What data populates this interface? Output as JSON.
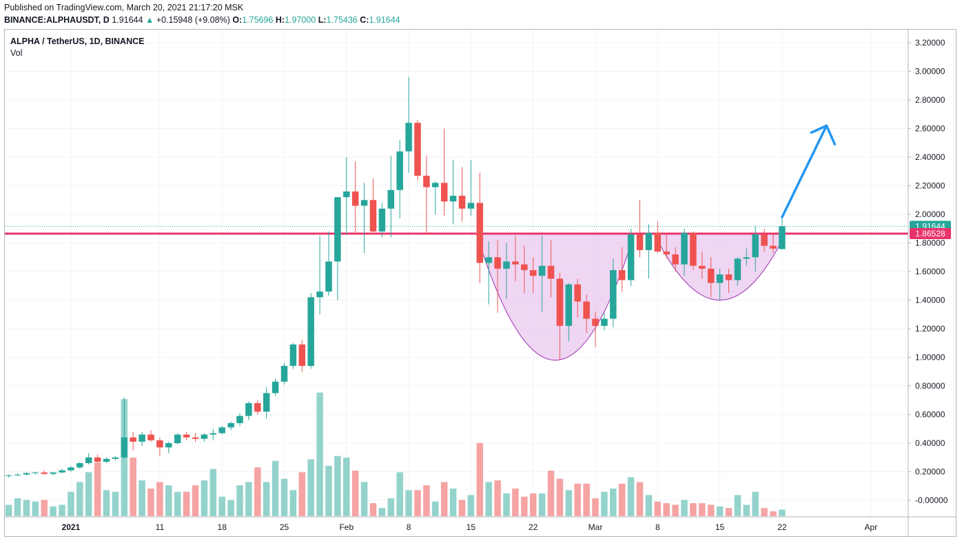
{
  "header": {
    "published": "Published on TradingView.com, March 20, 2021 21:17:20 MSK",
    "symbol": "BINANCE:ALPHAUSDT, D",
    "last": "1.91644",
    "change": "+0.15948 (+9.08%)",
    "o_label": "O:",
    "o_value": "1.75696",
    "h_label": "H:",
    "h_value": "1.97000",
    "l_label": "L:",
    "l_value": "1.75436",
    "c_label": "C:",
    "c_value": "1.91644",
    "up_arrow": "▲"
  },
  "legend": {
    "title": "ALPHA / TetherUS, 1D, BINANCE",
    "volume": "Vol"
  },
  "colors": {
    "up": "#26a69a",
    "down": "#ef5350",
    "volume_up": "#93d3cc",
    "volume_down": "#f5a3a3",
    "resistance": "#e8336a",
    "cup_fill": "#e9c8ef",
    "cup_stroke": "#9c27b0",
    "projection": "#2196f3"
  },
  "chart_data": {
    "type": "candlestick",
    "ylim": [
      -0.05,
      3.27
    ],
    "y_ticks": [
      "3.20000",
      "3.00000",
      "2.80000",
      "2.60000",
      "2.40000",
      "2.20000",
      "2.00000",
      "1.80000",
      "1.60000",
      "1.40000",
      "1.20000",
      "1.00000",
      "0.80000",
      "0.60000",
      "0.40000",
      "0.20000",
      "-0.00000"
    ],
    "y_tick_values": [
      3.2,
      3.0,
      2.8,
      2.6,
      2.4,
      2.2,
      2.0,
      1.8,
      1.6,
      1.4,
      1.2,
      1.0,
      0.8,
      0.6,
      0.4,
      0.2,
      0.0
    ],
    "x_ticks": [
      {
        "label": "2021",
        "date": "2021-01-01"
      },
      {
        "label": "11",
        "date": "2021-01-11"
      },
      {
        "label": "18",
        "date": "2021-01-18"
      },
      {
        "label": "25",
        "date": "2021-01-25"
      },
      {
        "label": "Feb",
        "date": "2021-02-01"
      },
      {
        "label": "8",
        "date": "2021-02-08"
      },
      {
        "label": "15",
        "date": "2021-02-15"
      },
      {
        "label": "22",
        "date": "2021-02-22"
      },
      {
        "label": "Mar",
        "date": "2021-03-01"
      },
      {
        "label": "8",
        "date": "2021-03-08"
      },
      {
        "label": "15",
        "date": "2021-03-15"
      },
      {
        "label": "22",
        "date": "2021-03-22"
      },
      {
        "label": "Apr",
        "date": "2021-04-01"
      }
    ],
    "candles": [
      {
        "date": "2020-12-25",
        "o": 0.17,
        "h": 0.18,
        "l": 0.16,
        "c": 0.175,
        "v": 0.07
      },
      {
        "date": "2020-12-26",
        "o": 0.175,
        "h": 0.19,
        "l": 0.17,
        "c": 0.18,
        "v": 0.11
      },
      {
        "date": "2020-12-27",
        "o": 0.18,
        "h": 0.2,
        "l": 0.175,
        "c": 0.19,
        "v": 0.1
      },
      {
        "date": "2020-12-28",
        "o": 0.19,
        "h": 0.2,
        "l": 0.18,
        "c": 0.195,
        "v": 0.09
      },
      {
        "date": "2020-12-29",
        "o": 0.195,
        "h": 0.21,
        "l": 0.18,
        "c": 0.185,
        "v": 0.1
      },
      {
        "date": "2020-12-30",
        "o": 0.185,
        "h": 0.2,
        "l": 0.175,
        "c": 0.195,
        "v": 0.06
      },
      {
        "date": "2020-12-31",
        "o": 0.195,
        "h": 0.22,
        "l": 0.19,
        "c": 0.21,
        "v": 0.07
      },
      {
        "date": "2021-01-01",
        "o": 0.21,
        "h": 0.24,
        "l": 0.2,
        "c": 0.23,
        "v": 0.15
      },
      {
        "date": "2021-01-02",
        "o": 0.23,
        "h": 0.27,
        "l": 0.22,
        "c": 0.26,
        "v": 0.21
      },
      {
        "date": "2021-01-03",
        "o": 0.26,
        "h": 0.33,
        "l": 0.25,
        "c": 0.3,
        "v": 0.27
      },
      {
        "date": "2021-01-04",
        "o": 0.3,
        "h": 0.32,
        "l": 0.26,
        "c": 0.27,
        "v": 0.33
      },
      {
        "date": "2021-01-05",
        "o": 0.27,
        "h": 0.3,
        "l": 0.26,
        "c": 0.29,
        "v": 0.16
      },
      {
        "date": "2021-01-06",
        "o": 0.29,
        "h": 0.31,
        "l": 0.28,
        "c": 0.3,
        "v": 0.15
      },
      {
        "date": "2021-01-07",
        "o": 0.3,
        "h": 0.72,
        "l": 0.29,
        "c": 0.44,
        "v": 0.72
      },
      {
        "date": "2021-01-08",
        "o": 0.44,
        "h": 0.48,
        "l": 0.35,
        "c": 0.41,
        "v": 0.36
      },
      {
        "date": "2021-01-09",
        "o": 0.41,
        "h": 0.48,
        "l": 0.38,
        "c": 0.46,
        "v": 0.22
      },
      {
        "date": "2021-01-10",
        "o": 0.46,
        "h": 0.49,
        "l": 0.41,
        "c": 0.42,
        "v": 0.17
      },
      {
        "date": "2021-01-11",
        "o": 0.42,
        "h": 0.44,
        "l": 0.31,
        "c": 0.37,
        "v": 0.21
      },
      {
        "date": "2021-01-12",
        "o": 0.37,
        "h": 0.41,
        "l": 0.33,
        "c": 0.4,
        "v": 0.19
      },
      {
        "date": "2021-01-13",
        "o": 0.4,
        "h": 0.47,
        "l": 0.39,
        "c": 0.46,
        "v": 0.15
      },
      {
        "date": "2021-01-14",
        "o": 0.46,
        "h": 0.48,
        "l": 0.42,
        "c": 0.44,
        "v": 0.15
      },
      {
        "date": "2021-01-15",
        "o": 0.44,
        "h": 0.47,
        "l": 0.41,
        "c": 0.43,
        "v": 0.19
      },
      {
        "date": "2021-01-16",
        "o": 0.43,
        "h": 0.47,
        "l": 0.41,
        "c": 0.46,
        "v": 0.22
      },
      {
        "date": "2021-01-17",
        "o": 0.46,
        "h": 0.5,
        "l": 0.42,
        "c": 0.47,
        "v": 0.29
      },
      {
        "date": "2021-01-18",
        "o": 0.47,
        "h": 0.52,
        "l": 0.46,
        "c": 0.51,
        "v": 0.12
      },
      {
        "date": "2021-01-19",
        "o": 0.51,
        "h": 0.55,
        "l": 0.49,
        "c": 0.54,
        "v": 0.1
      },
      {
        "date": "2021-01-20",
        "o": 0.54,
        "h": 0.61,
        "l": 0.52,
        "c": 0.59,
        "v": 0.19
      },
      {
        "date": "2021-01-21",
        "o": 0.59,
        "h": 0.69,
        "l": 0.56,
        "c": 0.68,
        "v": 0.21
      },
      {
        "date": "2021-01-22",
        "o": 0.68,
        "h": 0.7,
        "l": 0.6,
        "c": 0.62,
        "v": 0.3
      },
      {
        "date": "2021-01-23",
        "o": 0.62,
        "h": 0.79,
        "l": 0.57,
        "c": 0.75,
        "v": 0.21
      },
      {
        "date": "2021-01-24",
        "o": 0.75,
        "h": 0.85,
        "l": 0.73,
        "c": 0.83,
        "v": 0.34
      },
      {
        "date": "2021-01-25",
        "o": 0.83,
        "h": 0.96,
        "l": 0.81,
        "c": 0.94,
        "v": 0.23
      },
      {
        "date": "2021-01-26",
        "o": 0.94,
        "h": 1.1,
        "l": 0.92,
        "c": 1.09,
        "v": 0.16
      },
      {
        "date": "2021-01-27",
        "o": 1.09,
        "h": 1.12,
        "l": 0.9,
        "c": 0.94,
        "v": 0.27
      },
      {
        "date": "2021-01-28",
        "o": 0.94,
        "h": 1.45,
        "l": 0.92,
        "c": 1.42,
        "v": 0.35
      },
      {
        "date": "2021-01-29",
        "o": 1.42,
        "h": 1.85,
        "l": 1.3,
        "c": 1.46,
        "v": 0.76
      },
      {
        "date": "2021-01-30",
        "o": 1.46,
        "h": 1.88,
        "l": 1.43,
        "c": 1.67,
        "v": 0.31
      },
      {
        "date": "2021-01-31",
        "o": 1.67,
        "h": 2.12,
        "l": 1.4,
        "c": 2.12,
        "v": 0.37
      },
      {
        "date": "2021-02-01",
        "o": 2.12,
        "h": 2.4,
        "l": 1.86,
        "c": 2.16,
        "v": 0.36
      },
      {
        "date": "2021-02-02",
        "o": 2.16,
        "h": 2.37,
        "l": 1.86,
        "c": 2.06,
        "v": 0.28
      },
      {
        "date": "2021-02-03",
        "o": 2.06,
        "h": 2.22,
        "l": 1.73,
        "c": 2.1,
        "v": 0.21
      },
      {
        "date": "2021-02-04",
        "o": 2.1,
        "h": 2.25,
        "l": 1.86,
        "c": 1.88,
        "v": 0.08
      },
      {
        "date": "2021-02-05",
        "o": 1.88,
        "h": 2.08,
        "l": 1.84,
        "c": 2.04,
        "v": 0.05
      },
      {
        "date": "2021-02-06",
        "o": 2.04,
        "h": 2.41,
        "l": 1.84,
        "c": 2.17,
        "v": 0.11
      },
      {
        "date": "2021-02-07",
        "o": 2.17,
        "h": 2.52,
        "l": 1.97,
        "c": 2.44,
        "v": 0.27
      },
      {
        "date": "2021-02-08",
        "o": 2.44,
        "h": 2.96,
        "l": 2.29,
        "c": 2.64,
        "v": 0.16
      },
      {
        "date": "2021-02-09",
        "o": 2.64,
        "h": 2.66,
        "l": 2.24,
        "c": 2.27,
        "v": 0.16
      },
      {
        "date": "2021-02-10",
        "o": 2.27,
        "h": 2.41,
        "l": 1.86,
        "c": 2.19,
        "v": 0.19
      },
      {
        "date": "2021-02-11",
        "o": 2.19,
        "h": 2.23,
        "l": 2.0,
        "c": 2.22,
        "v": 0.09
      },
      {
        "date": "2021-02-12",
        "o": 2.22,
        "h": 2.6,
        "l": 1.99,
        "c": 2.09,
        "v": 0.21
      },
      {
        "date": "2021-02-13",
        "o": 2.09,
        "h": 2.38,
        "l": 1.93,
        "c": 2.13,
        "v": 0.17
      },
      {
        "date": "2021-02-14",
        "o": 2.13,
        "h": 2.33,
        "l": 1.95,
        "c": 2.04,
        "v": 0.1
      },
      {
        "date": "2021-02-15",
        "o": 2.04,
        "h": 2.38,
        "l": 1.99,
        "c": 2.08,
        "v": 0.13
      },
      {
        "date": "2021-02-16",
        "o": 2.08,
        "h": 2.29,
        "l": 1.52,
        "c": 1.66,
        "v": 0.45
      },
      {
        "date": "2021-02-17",
        "o": 1.66,
        "h": 1.81,
        "l": 1.37,
        "c": 1.7,
        "v": 0.21
      },
      {
        "date": "2021-02-18",
        "o": 1.7,
        "h": 1.82,
        "l": 1.31,
        "c": 1.62,
        "v": 0.22
      },
      {
        "date": "2021-02-19",
        "o": 1.62,
        "h": 1.8,
        "l": 1.41,
        "c": 1.67,
        "v": 0.14
      },
      {
        "date": "2021-02-20",
        "o": 1.67,
        "h": 1.85,
        "l": 1.53,
        "c": 1.65,
        "v": 0.17
      },
      {
        "date": "2021-02-21",
        "o": 1.65,
        "h": 1.78,
        "l": 1.45,
        "c": 1.61,
        "v": 0.12
      },
      {
        "date": "2021-02-22",
        "o": 1.61,
        "h": 1.7,
        "l": 1.45,
        "c": 1.57,
        "v": 0.14
      },
      {
        "date": "2021-02-23",
        "o": 1.57,
        "h": 1.85,
        "l": 1.32,
        "c": 1.64,
        "v": 0.14
      },
      {
        "date": "2021-02-24",
        "o": 1.64,
        "h": 1.82,
        "l": 1.42,
        "c": 1.55,
        "v": 0.28
      },
      {
        "date": "2021-02-25",
        "o": 1.55,
        "h": 1.59,
        "l": 0.98,
        "c": 1.22,
        "v": 0.23
      },
      {
        "date": "2021-02-26",
        "o": 1.22,
        "h": 1.52,
        "l": 1.11,
        "c": 1.51,
        "v": 0.16
      },
      {
        "date": "2021-02-27",
        "o": 1.51,
        "h": 1.55,
        "l": 1.28,
        "c": 1.39,
        "v": 0.2
      },
      {
        "date": "2021-02-28",
        "o": 1.39,
        "h": 1.44,
        "l": 1.17,
        "c": 1.27,
        "v": 0.2
      },
      {
        "date": "2021-03-01",
        "o": 1.27,
        "h": 1.32,
        "l": 1.07,
        "c": 1.22,
        "v": 0.11
      },
      {
        "date": "2021-03-02",
        "o": 1.22,
        "h": 1.31,
        "l": 1.19,
        "c": 1.27,
        "v": 0.15
      },
      {
        "date": "2021-03-03",
        "o": 1.27,
        "h": 1.69,
        "l": 1.21,
        "c": 1.61,
        "v": 0.17
      },
      {
        "date": "2021-03-04",
        "o": 1.61,
        "h": 1.77,
        "l": 1.46,
        "c": 1.54,
        "v": 0.2
      },
      {
        "date": "2021-03-05",
        "o": 1.54,
        "h": 1.9,
        "l": 1.5,
        "c": 1.86,
        "v": 0.24
      },
      {
        "date": "2021-03-06",
        "o": 1.86,
        "h": 2.1,
        "l": 1.7,
        "c": 1.75,
        "v": 0.21
      },
      {
        "date": "2021-03-07",
        "o": 1.75,
        "h": 1.93,
        "l": 1.55,
        "c": 1.87,
        "v": 0.13
      },
      {
        "date": "2021-03-08",
        "o": 1.87,
        "h": 1.95,
        "l": 1.73,
        "c": 1.74,
        "v": 0.09
      },
      {
        "date": "2021-03-09",
        "o": 1.74,
        "h": 1.86,
        "l": 1.69,
        "c": 1.72,
        "v": 0.08
      },
      {
        "date": "2021-03-10",
        "o": 1.72,
        "h": 1.77,
        "l": 1.6,
        "c": 1.65,
        "v": 0.07
      },
      {
        "date": "2021-03-11",
        "o": 1.65,
        "h": 1.9,
        "l": 1.57,
        "c": 1.87,
        "v": 0.1
      },
      {
        "date": "2021-03-12",
        "o": 1.87,
        "h": 1.88,
        "l": 1.61,
        "c": 1.64,
        "v": 0.08
      },
      {
        "date": "2021-03-13",
        "o": 1.64,
        "h": 1.74,
        "l": 1.55,
        "c": 1.62,
        "v": 0.08
      },
      {
        "date": "2021-03-14",
        "o": 1.62,
        "h": 1.7,
        "l": 1.42,
        "c": 1.52,
        "v": 0.07
      },
      {
        "date": "2021-03-15",
        "o": 1.52,
        "h": 1.62,
        "l": 1.4,
        "c": 1.58,
        "v": 0.06
      },
      {
        "date": "2021-03-16",
        "o": 1.58,
        "h": 1.62,
        "l": 1.45,
        "c": 1.54,
        "v": 0.05
      },
      {
        "date": "2021-03-17",
        "o": 1.54,
        "h": 1.7,
        "l": 1.5,
        "c": 1.69,
        "v": 0.13
      },
      {
        "date": "2021-03-18",
        "o": 1.69,
        "h": 1.76,
        "l": 1.64,
        "c": 1.7,
        "v": 0.07
      },
      {
        "date": "2021-03-19",
        "o": 1.7,
        "h": 1.92,
        "l": 1.6,
        "c": 1.86,
        "v": 0.15
      },
      {
        "date": "2021-03-20",
        "o": 1.86,
        "h": 1.9,
        "l": 1.74,
        "c": 1.78,
        "v": 0.05
      },
      {
        "date": "2021-03-21",
        "o": 1.78,
        "h": 1.86,
        "l": 1.73,
        "c": 1.76,
        "v": 0.03
      },
      {
        "date": "2021-03-22",
        "o": 1.75696,
        "h": 1.97,
        "l": 1.75436,
        "c": 1.91644,
        "v": 0.04
      }
    ],
    "price_labels": [
      {
        "value": 1.91644,
        "label": "1.91644",
        "color": "#26a69a"
      },
      {
        "value": 1.86528,
        "label": "1.86528",
        "color": "#e8336a"
      }
    ],
    "resistance_level": 1.86528,
    "cups": [
      {
        "from": "2021-02-16",
        "to": "2021-03-05",
        "bottom": 0.98
      },
      {
        "from": "2021-03-08",
        "to": "2021-03-22",
        "bottom": 1.4
      }
    ],
    "projection": {
      "from": {
        "date": "2021-03-22",
        "value": 1.98
      },
      "to": {
        "date": "2021-03-27",
        "value": 2.62
      }
    }
  }
}
